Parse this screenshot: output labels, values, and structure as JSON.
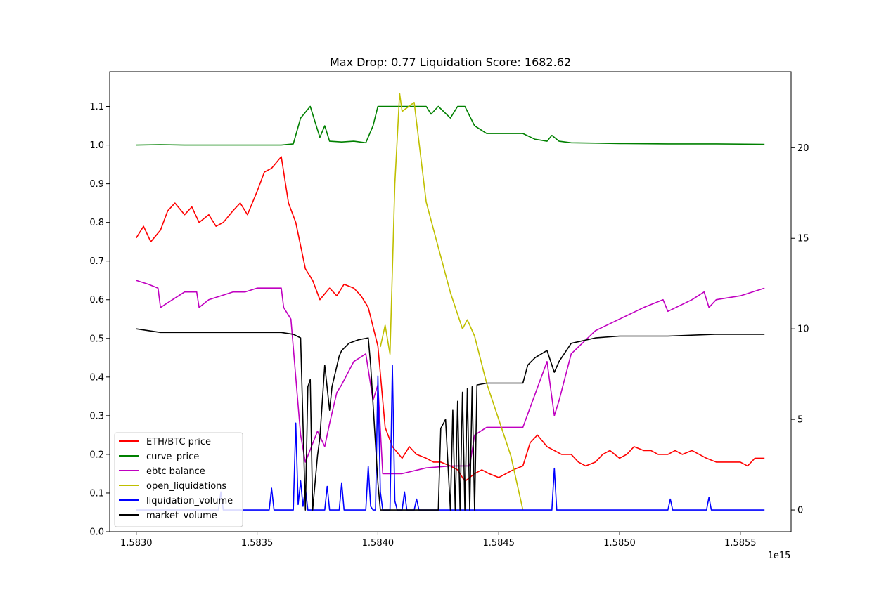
{
  "chart_data": {
    "type": "line",
    "title": "Max Drop: 0.77 Liquidation Score: 1682.62",
    "x_offset_label": "1e15",
    "x_ticks": [
      1.583,
      1.5835,
      1.584,
      1.5845,
      1.585,
      1.5855
    ],
    "x_tick_labels": [
      "1.5830",
      "1.5835",
      "1.5840",
      "1.5845",
      "1.5850",
      "1.5855"
    ],
    "xlim": [
      1.58289,
      1.58571
    ],
    "y_left": {
      "ylim": [
        0.0,
        1.19
      ],
      "ticks": [
        0.0,
        0.1,
        0.2,
        0.3,
        0.4,
        0.5,
        0.6,
        0.7,
        0.8,
        0.9,
        1.0,
        1.1
      ],
      "tick_labels": [
        "0.0",
        "0.1",
        "0.2",
        "0.3",
        "0.4",
        "0.5",
        "0.6",
        "0.7",
        "0.8",
        "0.9",
        "1.0",
        "1.1"
      ]
    },
    "y_right": {
      "ylim": [
        -1.2,
        24.2
      ],
      "ticks": [
        0,
        5,
        10,
        15,
        20
      ],
      "tick_labels": [
        "0",
        "5",
        "10",
        "15",
        "20"
      ]
    },
    "legend_position": "lower-left",
    "series": [
      {
        "name": "ETH/BTC price",
        "color": "#ff0000",
        "axis": "left",
        "x": [
          1.583,
          1.58303,
          1.58306,
          1.5831,
          1.58313,
          1.58316,
          1.5832,
          1.58323,
          1.58326,
          1.5833,
          1.58333,
          1.58336,
          1.5834,
          1.58343,
          1.58346,
          1.5835,
          1.58353,
          1.58356,
          1.5836,
          1.58363,
          1.58366,
          1.5837,
          1.58373,
          1.58376,
          1.5838,
          1.58383,
          1.58386,
          1.5839,
          1.58393,
          1.58396,
          1.584,
          1.58403,
          1.58406,
          1.5841,
          1.58413,
          1.58416,
          1.5842,
          1.58423,
          1.58426,
          1.5843,
          1.58433,
          1.58436,
          1.5844,
          1.58443,
          1.58446,
          1.5845,
          1.58453,
          1.58456,
          1.5846,
          1.58463,
          1.58466,
          1.5847,
          1.58473,
          1.58476,
          1.5848,
          1.58483,
          1.58486,
          1.5849,
          1.58493,
          1.58496,
          1.585,
          1.58503,
          1.58506,
          1.5851,
          1.58513,
          1.58516,
          1.5852,
          1.58523,
          1.58526,
          1.5853,
          1.58533,
          1.58536,
          1.5854,
          1.58543,
          1.58546,
          1.5855,
          1.58553,
          1.58556,
          1.5856
        ],
        "y": [
          0.76,
          0.79,
          0.75,
          0.78,
          0.83,
          0.85,
          0.82,
          0.84,
          0.8,
          0.82,
          0.79,
          0.8,
          0.83,
          0.85,
          0.82,
          0.88,
          0.93,
          0.94,
          0.97,
          0.85,
          0.8,
          0.68,
          0.65,
          0.6,
          0.63,
          0.61,
          0.64,
          0.63,
          0.61,
          0.58,
          0.48,
          0.27,
          0.22,
          0.19,
          0.22,
          0.2,
          0.19,
          0.18,
          0.18,
          0.17,
          0.16,
          0.13,
          0.15,
          0.16,
          0.15,
          0.14,
          0.15,
          0.16,
          0.17,
          0.23,
          0.25,
          0.22,
          0.21,
          0.2,
          0.2,
          0.18,
          0.17,
          0.18,
          0.2,
          0.21,
          0.19,
          0.2,
          0.22,
          0.21,
          0.21,
          0.2,
          0.2,
          0.21,
          0.2,
          0.21,
          0.2,
          0.19,
          0.18,
          0.18,
          0.18,
          0.18,
          0.17,
          0.19,
          0.19
        ]
      },
      {
        "name": "curve_price",
        "color": "#008000",
        "axis": "left",
        "x": [
          1.583,
          1.5831,
          1.5832,
          1.5833,
          1.5834,
          1.5835,
          1.5836,
          1.58365,
          1.58368,
          1.58372,
          1.58376,
          1.58378,
          1.5838,
          1.58385,
          1.5839,
          1.58395,
          1.58398,
          1.584,
          1.58402,
          1.58405,
          1.5841,
          1.58415,
          1.5842,
          1.58422,
          1.58425,
          1.5843,
          1.58433,
          1.58436,
          1.5844,
          1.58445,
          1.5845,
          1.58455,
          1.5846,
          1.58465,
          1.5847,
          1.58472,
          1.58475,
          1.5848,
          1.5849,
          1.585,
          1.5852,
          1.5854,
          1.5856
        ],
        "y": [
          1.0,
          1.001,
          1.0,
          1.0,
          1.0,
          1.0,
          1.0,
          1.003,
          1.07,
          1.1,
          1.02,
          1.05,
          1.01,
          1.008,
          1.01,
          1.006,
          1.05,
          1.1,
          1.1,
          1.1,
          1.1,
          1.1,
          1.1,
          1.08,
          1.1,
          1.07,
          1.1,
          1.1,
          1.05,
          1.03,
          1.03,
          1.03,
          1.03,
          1.015,
          1.01,
          1.025,
          1.01,
          1.006,
          1.005,
          1.004,
          1.003,
          1.003,
          1.002
        ]
      },
      {
        "name": "ebtc balance",
        "color": "#c000c0",
        "axis": "left",
        "x": [
          1.583,
          1.58305,
          1.58309,
          1.5831,
          1.58315,
          1.5832,
          1.58325,
          1.58326,
          1.5833,
          1.58335,
          1.5834,
          1.58345,
          1.5835,
          1.58355,
          1.5836,
          1.58361,
          1.58364,
          1.58368,
          1.5837,
          1.58375,
          1.58378,
          1.5838,
          1.58383,
          1.58385,
          1.5839,
          1.58395,
          1.58398,
          1.584,
          1.58402,
          1.5841,
          1.5842,
          1.5843,
          1.58438,
          1.5844,
          1.58445,
          1.5845,
          1.58455,
          1.5846,
          1.5847,
          1.58473,
          1.58475,
          1.5848,
          1.5849,
          1.585,
          1.5851,
          1.58518,
          1.5852,
          1.5853,
          1.58535,
          1.58537,
          1.5854,
          1.5855,
          1.5856
        ],
        "y": [
          0.65,
          0.64,
          0.63,
          0.58,
          0.6,
          0.62,
          0.62,
          0.58,
          0.6,
          0.61,
          0.62,
          0.62,
          0.63,
          0.63,
          0.63,
          0.58,
          0.55,
          0.25,
          0.18,
          0.26,
          0.22,
          0.28,
          0.36,
          0.38,
          0.44,
          0.46,
          0.34,
          0.38,
          0.15,
          0.15,
          0.165,
          0.17,
          0.17,
          0.25,
          0.27,
          0.27,
          0.27,
          0.27,
          0.44,
          0.3,
          0.34,
          0.46,
          0.52,
          0.55,
          0.58,
          0.6,
          0.57,
          0.6,
          0.62,
          0.58,
          0.6,
          0.61,
          0.63
        ]
      },
      {
        "name": "open_liquidations",
        "color": "#bfbf00",
        "axis": "right",
        "x": [
          1.58401,
          1.58403,
          1.58405,
          1.58407,
          1.58409,
          1.5841,
          1.58415,
          1.5842,
          1.5843,
          1.58435,
          1.58437,
          1.5844,
          1.58445,
          1.5845,
          1.58455,
          1.5846
        ],
        "y": [
          9.0,
          10.2,
          8.6,
          18.0,
          23.0,
          22.0,
          22.5,
          17.0,
          12.0,
          10.0,
          10.5,
          9.6,
          7.0,
          5.0,
          3.0,
          0.0
        ]
      },
      {
        "name": "liquidation_volume",
        "color": "#0000ff",
        "axis": "right",
        "x": [
          1.583,
          1.58334,
          1.58335,
          1.58336,
          1.58355,
          1.58356,
          1.58357,
          1.58365,
          1.58366,
          1.58367,
          1.58368,
          1.58369,
          1.5837,
          1.58371,
          1.58372,
          1.58378,
          1.58379,
          1.5838,
          1.58384,
          1.58385,
          1.58386,
          1.58395,
          1.58396,
          1.58397,
          1.58398,
          1.58399,
          1.584,
          1.58401,
          1.58402,
          1.58405,
          1.58406,
          1.58407,
          1.58408,
          1.5841,
          1.58411,
          1.58412,
          1.58415,
          1.58416,
          1.58417,
          1.58472,
          1.58473,
          1.58474,
          1.5852,
          1.58521,
          1.58522,
          1.58536,
          1.58537,
          1.58538,
          1.5856
        ],
        "y": [
          0.0,
          0.0,
          1.0,
          0.0,
          0.0,
          1.2,
          0.0,
          0.0,
          4.8,
          0.3,
          1.6,
          0.2,
          1.2,
          0.0,
          0.0,
          0.0,
          1.3,
          0.0,
          0.0,
          1.5,
          0.0,
          0.0,
          2.4,
          0.2,
          0.0,
          0.0,
          7.4,
          1.0,
          0.0,
          0.0,
          8.0,
          0.5,
          0.0,
          0.0,
          1.0,
          0.0,
          0.0,
          0.6,
          0.0,
          0.0,
          2.3,
          0.0,
          0.0,
          0.6,
          0.0,
          0.0,
          0.7,
          0.0,
          0.0
        ]
      },
      {
        "name": "market_volume",
        "color": "#000000",
        "axis": "right",
        "x": [
          1.583,
          1.5831,
          1.5832,
          1.5833,
          1.5834,
          1.5835,
          1.5836,
          1.58365,
          1.58368,
          1.5837,
          1.58371,
          1.58372,
          1.58373,
          1.58375,
          1.58376,
          1.58378,
          1.5838,
          1.58381,
          1.58384,
          1.58385,
          1.58388,
          1.58392,
          1.58396,
          1.58397,
          1.584,
          1.58401,
          1.58425,
          1.58426,
          1.58428,
          1.5843,
          1.58431,
          1.58432,
          1.58433,
          1.58434,
          1.58435,
          1.58436,
          1.58437,
          1.58438,
          1.58439,
          1.5844,
          1.58441,
          1.58445,
          1.5845,
          1.58455,
          1.5846,
          1.58462,
          1.58465,
          1.5847,
          1.58473,
          1.58475,
          1.5848,
          1.5849,
          1.585,
          1.5852,
          1.5854,
          1.5856
        ],
        "y": [
          10.0,
          9.8,
          9.8,
          9.8,
          9.8,
          9.8,
          9.8,
          9.7,
          9.5,
          0.0,
          6.8,
          7.2,
          0.0,
          3.0,
          4.0,
          8.0,
          5.5,
          6.8,
          8.5,
          8.8,
          9.2,
          9.4,
          9.5,
          8.0,
          1.5,
          0.0,
          0.0,
          4.5,
          5.0,
          0.0,
          5.5,
          0.0,
          6.0,
          0.0,
          6.5,
          0.0,
          6.7,
          0.0,
          6.8,
          0.0,
          6.9,
          7.0,
          7.0,
          7.0,
          7.0,
          8.0,
          8.4,
          8.8,
          7.6,
          8.2,
          9.2,
          9.5,
          9.6,
          9.6,
          9.7,
          9.7
        ]
      }
    ]
  }
}
